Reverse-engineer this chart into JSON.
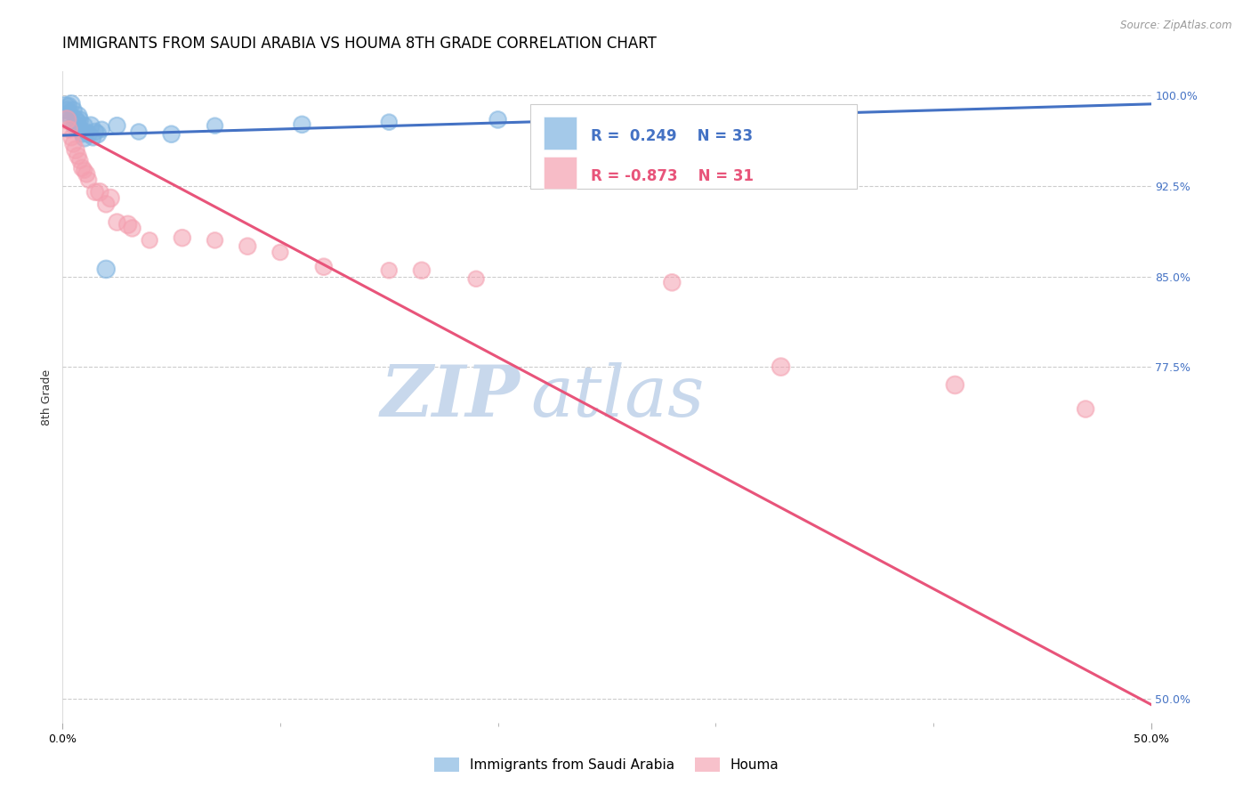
{
  "title": "IMMIGRANTS FROM SAUDI ARABIA VS HOUMA 8TH GRADE CORRELATION CHART",
  "source": "Source: ZipAtlas.com",
  "ylabel": "8th Grade",
  "legend_blue_R": "0.249",
  "legend_blue_N": "33",
  "legend_pink_R": "-0.873",
  "legend_pink_N": "31",
  "legend_label_blue": "Immigrants from Saudi Arabia",
  "legend_label_pink": "Houma",
  "blue_color": "#7EB3E0",
  "pink_color": "#F4A0B0",
  "line_blue_color": "#4472C4",
  "line_pink_color": "#E8547A",
  "watermark_zip": "ZIP",
  "watermark_atlas": "atlas",
  "watermark_color": "#C8D8EC",
  "title_fontsize": 12,
  "axis_label_fontsize": 9,
  "tick_fontsize": 9,
  "xlim": [
    0.0,
    0.5
  ],
  "ylim": [
    0.48,
    1.02
  ],
  "x_ticks": [
    0.0,
    0.5
  ],
  "x_tick_labels": [
    "0.0%",
    "50.0%"
  ],
  "y_tick_positions": [
    1.0,
    0.925,
    0.85,
    0.775,
    0.5
  ],
  "y_tick_labels": [
    "100.0%",
    "92.5%",
    "85.0%",
    "77.5%",
    "50.0%"
  ],
  "blue_line_x0": 0.0,
  "blue_line_x1": 0.5,
  "blue_line_y0": 0.967,
  "blue_line_y1": 0.993,
  "pink_line_x0": 0.0,
  "pink_line_x1": 0.5,
  "pink_line_y0": 0.975,
  "pink_line_y1": 0.495,
  "blue_scatter_x": [
    0.001,
    0.002,
    0.003,
    0.003,
    0.004,
    0.004,
    0.005,
    0.005,
    0.006,
    0.007,
    0.007,
    0.008,
    0.008,
    0.009,
    0.01,
    0.01,
    0.011,
    0.012,
    0.013,
    0.014,
    0.015,
    0.016,
    0.018,
    0.02,
    0.025,
    0.035,
    0.05,
    0.07,
    0.11,
    0.15,
    0.2,
    0.25,
    0.32
  ],
  "blue_scatter_y": [
    0.99,
    0.988,
    0.985,
    0.992,
    0.98,
    0.993,
    0.975,
    0.988,
    0.98,
    0.983,
    0.978,
    0.972,
    0.98,
    0.968,
    0.965,
    0.975,
    0.97,
    0.968,
    0.975,
    0.965,
    0.97,
    0.968,
    0.972,
    0.856,
    0.975,
    0.97,
    0.968,
    0.975,
    0.976,
    0.978,
    0.98,
    0.983,
    0.986
  ],
  "blue_scatter_sizes": [
    300,
    180,
    200,
    150,
    180,
    200,
    160,
    180,
    200,
    220,
    180,
    200,
    180,
    160,
    200,
    180,
    160,
    180,
    200,
    160,
    180,
    200,
    160,
    200,
    180,
    160,
    180,
    160,
    180,
    160,
    180,
    160,
    140
  ],
  "pink_scatter_x": [
    0.002,
    0.003,
    0.004,
    0.005,
    0.006,
    0.007,
    0.008,
    0.009,
    0.01,
    0.011,
    0.012,
    0.015,
    0.017,
    0.02,
    0.022,
    0.025,
    0.03,
    0.032,
    0.04,
    0.055,
    0.07,
    0.085,
    0.1,
    0.12,
    0.15,
    0.165,
    0.19,
    0.28,
    0.33,
    0.41,
    0.47
  ],
  "pink_scatter_y": [
    0.98,
    0.972,
    0.965,
    0.96,
    0.955,
    0.95,
    0.946,
    0.94,
    0.938,
    0.935,
    0.93,
    0.92,
    0.92,
    0.91,
    0.915,
    0.895,
    0.893,
    0.89,
    0.88,
    0.882,
    0.88,
    0.875,
    0.87,
    0.858,
    0.855,
    0.855,
    0.848,
    0.845,
    0.775,
    0.76,
    0.74
  ],
  "pink_scatter_sizes": [
    220,
    180,
    160,
    180,
    200,
    180,
    160,
    180,
    160,
    180,
    160,
    180,
    200,
    180,
    200,
    180,
    200,
    180,
    160,
    180,
    160,
    180,
    160,
    180,
    160,
    180,
    160,
    180,
    200,
    200,
    180
  ]
}
